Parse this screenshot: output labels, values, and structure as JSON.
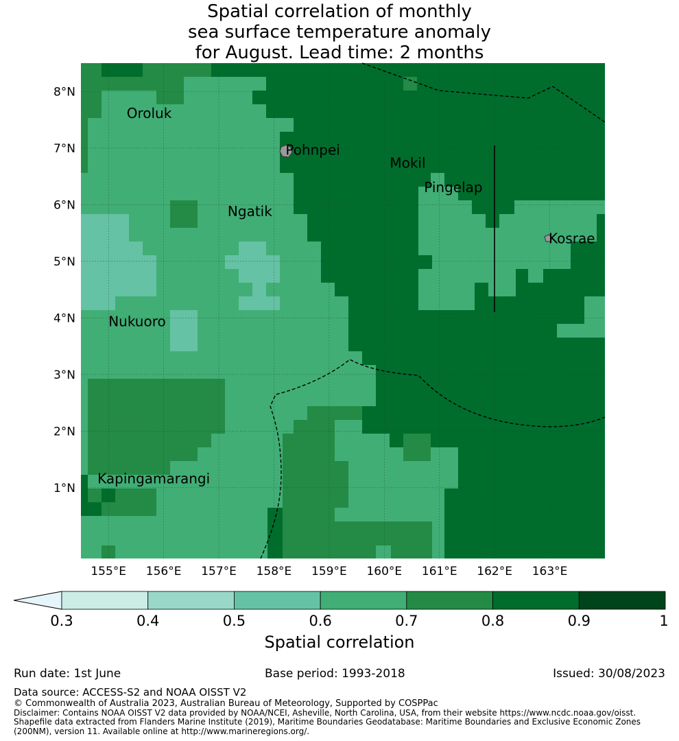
{
  "title": {
    "lines": [
      "Spatial correlation of monthly",
      "sea surface temperature anomaly",
      "for August. Lead time: 2 months"
    ]
  },
  "map": {
    "lon_range": [
      154.5,
      164.0
    ],
    "lat_range": [
      -0.25,
      8.5
    ],
    "lon_ticks": [
      "155°E",
      "156°E",
      "157°E",
      "158°E",
      "159°E",
      "160°E",
      "161°E",
      "162°E",
      "163°E"
    ],
    "lat_ticks": [
      "1°N",
      "2°N",
      "3°N",
      "4°N",
      "5°N",
      "6°N",
      "7°N",
      "8°N"
    ],
    "places": [
      {
        "name": "Oroluk",
        "lon": 155.33,
        "lat": 7.53
      },
      {
        "name": "Pohnpei",
        "lon": 158.21,
        "lat": 6.88
      },
      {
        "name": "Mokil",
        "lon": 160.1,
        "lat": 6.65
      },
      {
        "name": "Pingelap",
        "lon": 160.72,
        "lat": 6.22
      },
      {
        "name": "Ngatik",
        "lon": 157.16,
        "lat": 5.8
      },
      {
        "name": "Kosrae",
        "lon": 162.98,
        "lat": 5.32
      },
      {
        "name": "Nukuoro",
        "lon": 155.0,
        "lat": 3.85
      },
      {
        "name": "Kapingamarangi",
        "lon": 154.8,
        "lat": 1.08
      }
    ],
    "default_class": 5
  },
  "colorbar": {
    "ticks": [
      "0.3",
      "0.4",
      "0.5",
      "0.6",
      "0.7",
      "0.8",
      "0.9",
      "1"
    ],
    "colors": [
      "#ccece6",
      "#99d8c9",
      "#66c2a4",
      "#41ae76",
      "#238b45",
      "#006d2c",
      "#00441b"
    ],
    "under_color": "#e5f5f9",
    "label": "Spatial correlation"
  },
  "footer": {
    "run_date": "Run date: 1st June",
    "base_period": "Base period: 1993-2018",
    "issued": "Issued: 30/08/2023",
    "data_source": "Data source: ACCESS-S2 and NOAA OISST V2",
    "copyright": "© Commonwealth of Australia 2023, Australian Bureau of Meteorology, Supported by COSPPac",
    "disclaimer": "Disclaimer: Contains NOAA OISST V2 data provided by NOAA/NCEI, Asheville, North Carolina, USA, from their website https://www.ncdc.noaa.gov/oisst.",
    "shapefile_1": "Shapefile data extracted from Flanders Marine Institute (2019), Maritime Boundaries Geodatabase: Maritime Boundaries and Exclusive Economic Zones",
    "shapefile_2": "(200NM), version 11. Available online at http://www.marineregions.org/."
  }
}
